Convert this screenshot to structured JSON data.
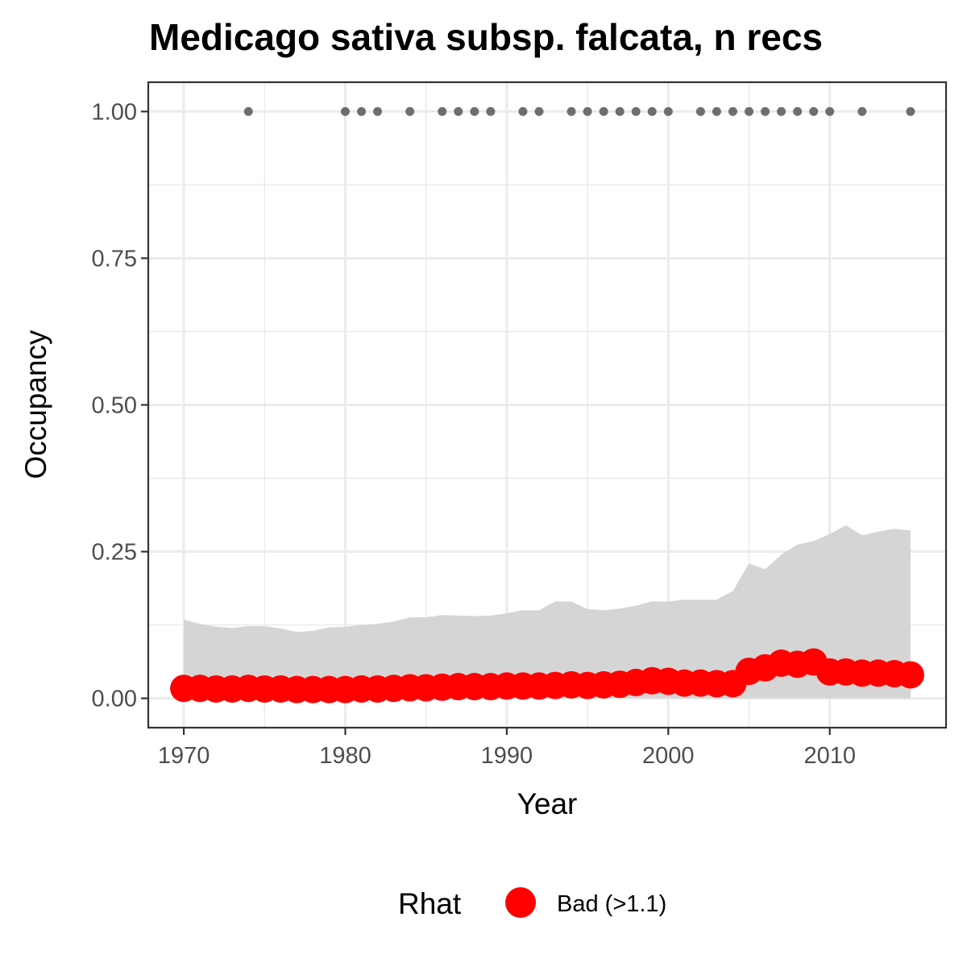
{
  "chart_data": {
    "type": "line",
    "title": "Medicago sativa subsp. falcata, n recs",
    "xlabel": "Year",
    "ylabel": "Occupancy",
    "xlim": [
      1967.8,
      2017.2
    ],
    "ylim": [
      -0.05,
      1.05
    ],
    "x_ticks": [
      1970,
      1980,
      1990,
      2000,
      2010
    ],
    "x_tick_labels": [
      "1970",
      "1980",
      "1990",
      "2000",
      "2010"
    ],
    "y_ticks": [
      0,
      0.25,
      0.5,
      0.75,
      1.0
    ],
    "y_tick_labels": [
      "0.00",
      "0.25",
      "0.50",
      "0.75",
      "1.00"
    ],
    "grid": true,
    "years": [
      1970,
      1971,
      1972,
      1973,
      1974,
      1975,
      1976,
      1977,
      1978,
      1979,
      1980,
      1981,
      1982,
      1983,
      1984,
      1985,
      1986,
      1987,
      1988,
      1989,
      1990,
      1991,
      1992,
      1993,
      1994,
      1995,
      1996,
      1997,
      1998,
      1999,
      2000,
      2001,
      2002,
      2003,
      2004,
      2005,
      2006,
      2007,
      2008,
      2009,
      2010,
      2011,
      2012,
      2013,
      2014,
      2015
    ],
    "mean": [
      0.017,
      0.017,
      0.016,
      0.016,
      0.017,
      0.016,
      0.016,
      0.015,
      0.015,
      0.015,
      0.015,
      0.016,
      0.016,
      0.017,
      0.018,
      0.018,
      0.019,
      0.02,
      0.02,
      0.02,
      0.021,
      0.021,
      0.021,
      0.022,
      0.023,
      0.022,
      0.023,
      0.024,
      0.027,
      0.03,
      0.029,
      0.026,
      0.026,
      0.025,
      0.025,
      0.046,
      0.052,
      0.06,
      0.058,
      0.062,
      0.045,
      0.045,
      0.043,
      0.043,
      0.042,
      0.04
    ],
    "upper": [
      0.134,
      0.127,
      0.122,
      0.12,
      0.123,
      0.123,
      0.119,
      0.113,
      0.115,
      0.121,
      0.122,
      0.125,
      0.127,
      0.131,
      0.138,
      0.138,
      0.142,
      0.141,
      0.14,
      0.141,
      0.145,
      0.15,
      0.15,
      0.165,
      0.165,
      0.152,
      0.15,
      0.153,
      0.158,
      0.165,
      0.165,
      0.168,
      0.168,
      0.168,
      0.183,
      0.23,
      0.22,
      0.245,
      0.262,
      0.268,
      0.28,
      0.295,
      0.278,
      0.284,
      0.289,
      0.286
    ],
    "lower": [
      0,
      0,
      0,
      0,
      0,
      0,
      0,
      0,
      0,
      0,
      0,
      0,
      0,
      0,
      0,
      0,
      0,
      0,
      0,
      0,
      0,
      0,
      0,
      0,
      0,
      0,
      0,
      0,
      0,
      0,
      0,
      0,
      0,
      0,
      0,
      0,
      0,
      0,
      0,
      0,
      0,
      0,
      0,
      0,
      0,
      0
    ],
    "record_years": [
      1974,
      1980,
      1981,
      1982,
      1984,
      1986,
      1987,
      1988,
      1989,
      1991,
      1992,
      1994,
      1995,
      1996,
      1997,
      1998,
      1999,
      2000,
      2002,
      2003,
      2004,
      2005,
      2006,
      2007,
      2008,
      2009,
      2010,
      2012,
      2015
    ],
    "record_value": 1.0,
    "legend": {
      "title": "Rhat",
      "position": "bottom",
      "items": [
        {
          "label": "Bad (>1.1)",
          "color": "#ff0000"
        }
      ]
    },
    "colors": {
      "line_points": "#ff0000",
      "ribbon": "#d5d5d5",
      "records": "#6e6e6e",
      "grid": "#ebebeb",
      "panel_border": "#333333"
    }
  }
}
